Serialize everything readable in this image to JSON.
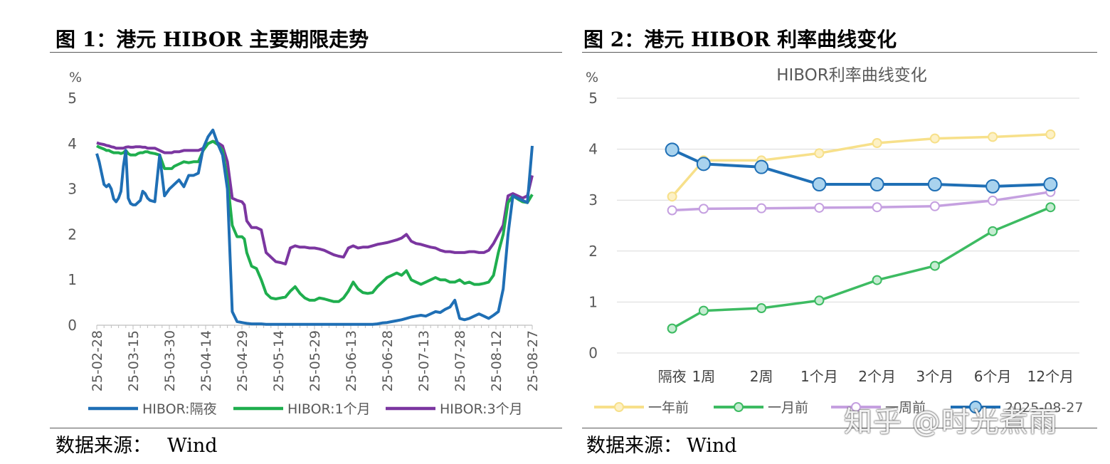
{
  "left": {
    "title": "图 1：港元 HIBOR 主要期限走势",
    "source_label": "数据来源：",
    "source_value": "Wind"
  },
  "right": {
    "title": "图 2：港元 HIBOR 利率曲线变化",
    "source_label": "数据来源：",
    "source_value": "Wind"
  },
  "watermark": "知乎 @时光煮雨",
  "colors": {
    "blue": "#1f6fb5",
    "green": "#1fae4e",
    "purple": "#7b36a0",
    "yellow": "#f7e08a",
    "lightgreen": "#3dbb62",
    "lavender": "#c5a0e0",
    "grid": "#d9d9d9",
    "text": "#595959"
  },
  "chart_data": [
    {
      "type": "line",
      "title": "",
      "ylabel": "%",
      "ylim": [
        0,
        5
      ],
      "yticks": [
        "0",
        "1",
        "2",
        "3",
        "4",
        "5"
      ],
      "xlabels": [
        "25-02-28",
        "25-03-15",
        "25-03-30",
        "25-04-14",
        "25-04-29",
        "25-05-14",
        "25-05-29",
        "25-06-13",
        "25-06-28",
        "25-07-13",
        "25-07-28",
        "25-08-12",
        "25-08-27"
      ],
      "x_days": [
        0,
        1,
        3,
        4,
        5,
        6,
        7,
        8,
        9,
        10,
        11,
        12,
        13,
        14,
        15,
        16,
        17,
        18,
        19,
        20,
        21,
        22,
        24,
        26,
        28,
        30,
        31,
        32,
        34,
        36,
        38,
        40,
        42,
        44,
        46,
        48,
        50,
        52,
        54,
        56,
        58,
        60,
        61,
        62,
        64,
        66,
        68,
        70,
        72,
        74,
        76,
        78,
        80,
        82,
        84,
        86,
        88,
        90,
        92,
        94,
        96,
        98,
        100,
        102,
        104,
        106,
        108,
        110,
        112,
        114,
        116,
        118,
        120,
        122,
        124,
        126,
        128,
        130,
        132,
        134,
        136,
        138,
        140,
        142,
        144,
        146,
        148,
        150,
        152,
        154,
        156,
        158,
        160,
        162,
        164,
        166,
        168,
        170,
        172,
        174,
        176,
        178,
        180
      ],
      "series": [
        {
          "name": "HIBOR:隔夜",
          "color": "blue",
          "values": [
            3.78,
            3.6,
            3.1,
            3.05,
            3.1,
            3.0,
            2.78,
            2.72,
            2.8,
            2.95,
            3.5,
            3.85,
            2.8,
            2.68,
            2.65,
            2.65,
            2.7,
            2.75,
            2.95,
            2.9,
            2.8,
            2.75,
            2.72,
            3.75,
            2.85,
            3.0,
            3.05,
            3.1,
            3.2,
            3.05,
            3.3,
            3.3,
            3.35,
            3.9,
            4.15,
            4.3,
            4.0,
            3.75,
            3.0,
            0.3,
            0.08,
            0.06,
            0.05,
            0.04,
            0.03,
            0.03,
            0.03,
            0.02,
            0.02,
            0.02,
            0.02,
            0.02,
            0.02,
            0.02,
            0.02,
            0.02,
            0.02,
            0.02,
            0.02,
            0.02,
            0.02,
            0.02,
            0.02,
            0.02,
            0.02,
            0.02,
            0.02,
            0.02,
            0.02,
            0.02,
            0.03,
            0.05,
            0.06,
            0.08,
            0.1,
            0.12,
            0.15,
            0.18,
            0.2,
            0.22,
            0.2,
            0.25,
            0.3,
            0.28,
            0.35,
            0.4,
            0.55,
            0.15,
            0.12,
            0.15,
            0.2,
            0.25,
            0.2,
            0.15,
            0.22,
            0.3,
            0.8,
            2.0,
            2.85,
            2.8,
            2.75,
            2.7,
            3.95
          ]
        },
        {
          "name": "HIBOR:1个月",
          "color": "green",
          "values": [
            3.95,
            3.92,
            3.88,
            3.85,
            3.85,
            3.82,
            3.8,
            3.8,
            3.8,
            3.78,
            3.8,
            3.85,
            3.78,
            3.75,
            3.75,
            3.75,
            3.78,
            3.8,
            3.8,
            3.82,
            3.82,
            3.8,
            3.78,
            3.75,
            3.45,
            3.45,
            3.45,
            3.5,
            3.55,
            3.6,
            3.58,
            3.6,
            3.6,
            3.85,
            4.0,
            4.05,
            3.98,
            3.85,
            3.2,
            2.2,
            1.95,
            1.95,
            1.9,
            1.6,
            1.3,
            1.25,
            1.0,
            0.7,
            0.6,
            0.58,
            0.6,
            0.62,
            0.75,
            0.85,
            0.7,
            0.6,
            0.55,
            0.55,
            0.6,
            0.58,
            0.55,
            0.52,
            0.52,
            0.6,
            0.75,
            0.95,
            0.8,
            0.72,
            0.7,
            0.72,
            0.85,
            0.95,
            1.05,
            1.1,
            1.15,
            1.1,
            1.2,
            1.0,
            0.95,
            0.9,
            0.95,
            1.0,
            1.05,
            1.0,
            1.0,
            0.95,
            0.95,
            1.0,
            0.92,
            0.95,
            0.9,
            0.9,
            0.92,
            0.95,
            1.1,
            1.6,
            2.0,
            2.7,
            2.85,
            2.78,
            2.72,
            2.7,
            2.88
          ]
        },
        {
          "name": "HIBOR:3个月",
          "color": "purple",
          "values": [
            4.02,
            4.0,
            3.98,
            3.96,
            3.95,
            3.93,
            3.92,
            3.9,
            3.9,
            3.9,
            3.9,
            3.92,
            3.93,
            3.92,
            3.92,
            3.93,
            3.93,
            3.93,
            3.92,
            3.92,
            3.9,
            3.9,
            3.9,
            3.85,
            3.8,
            3.8,
            3.8,
            3.82,
            3.82,
            3.85,
            3.85,
            3.85,
            3.85,
            3.9,
            4.0,
            4.05,
            4.02,
            3.95,
            3.6,
            2.8,
            2.75,
            2.72,
            2.65,
            2.3,
            2.15,
            2.15,
            2.1,
            1.6,
            1.5,
            1.4,
            1.38,
            1.35,
            1.7,
            1.75,
            1.72,
            1.72,
            1.7,
            1.7,
            1.68,
            1.65,
            1.6,
            1.55,
            1.52,
            1.5,
            1.7,
            1.75,
            1.7,
            1.72,
            1.72,
            1.75,
            1.78,
            1.8,
            1.82,
            1.85,
            1.88,
            1.92,
            2.0,
            1.85,
            1.8,
            1.78,
            1.75,
            1.72,
            1.7,
            1.65,
            1.62,
            1.62,
            1.6,
            1.6,
            1.6,
            1.62,
            1.62,
            1.6,
            1.6,
            1.65,
            1.8,
            2.0,
            2.2,
            2.85,
            2.9,
            2.85,
            2.8,
            2.85,
            3.3
          ]
        }
      ]
    },
    {
      "type": "line",
      "title": "HIBOR利率曲线变化",
      "ylabel": "%",
      "ylim": [
        0,
        5
      ],
      "yticks": [
        "0",
        "1",
        "2",
        "3",
        "4",
        "5"
      ],
      "categories": [
        "隔夜",
        "1周",
        "2周",
        "1个月",
        "2个月",
        "3个月",
        "6个月",
        "12个月"
      ],
      "series": [
        {
          "name": "一年前",
          "color": "yellow",
          "values": [
            3.07,
            3.78,
            3.78,
            3.92,
            4.12,
            4.21,
            4.24,
            4.29
          ]
        },
        {
          "name": "一月前",
          "color": "lightgreen",
          "values": [
            0.48,
            0.83,
            0.88,
            1.03,
            1.43,
            1.71,
            2.39,
            2.86
          ]
        },
        {
          "name": "一周前",
          "color": "lavender",
          "values": [
            2.8,
            2.83,
            2.84,
            2.85,
            2.86,
            2.88,
            2.99,
            3.16
          ]
        },
        {
          "name": "2025-08-27",
          "color": "blue",
          "values": [
            3.99,
            3.71,
            3.65,
            3.31,
            3.31,
            3.31,
            3.27,
            3.31
          ]
        }
      ]
    }
  ]
}
